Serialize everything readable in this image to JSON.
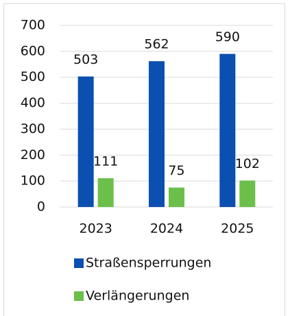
{
  "chart_data": {
    "type": "bar",
    "categories": [
      "2023",
      "2024",
      "2025"
    ],
    "series": [
      {
        "name": "Straßensperrungen",
        "color": "#0b4fb0",
        "values": [
          503,
          562,
          590
        ]
      },
      {
        "name": "Verlängerungen",
        "color": "#6cbf4a",
        "values": [
          111,
          75,
          102
        ]
      }
    ],
    "ylim": [
      0,
      700
    ],
    "yticks": [
      0,
      100,
      200,
      300,
      400,
      500,
      600,
      700
    ],
    "grid": true,
    "legend": "bottom"
  }
}
